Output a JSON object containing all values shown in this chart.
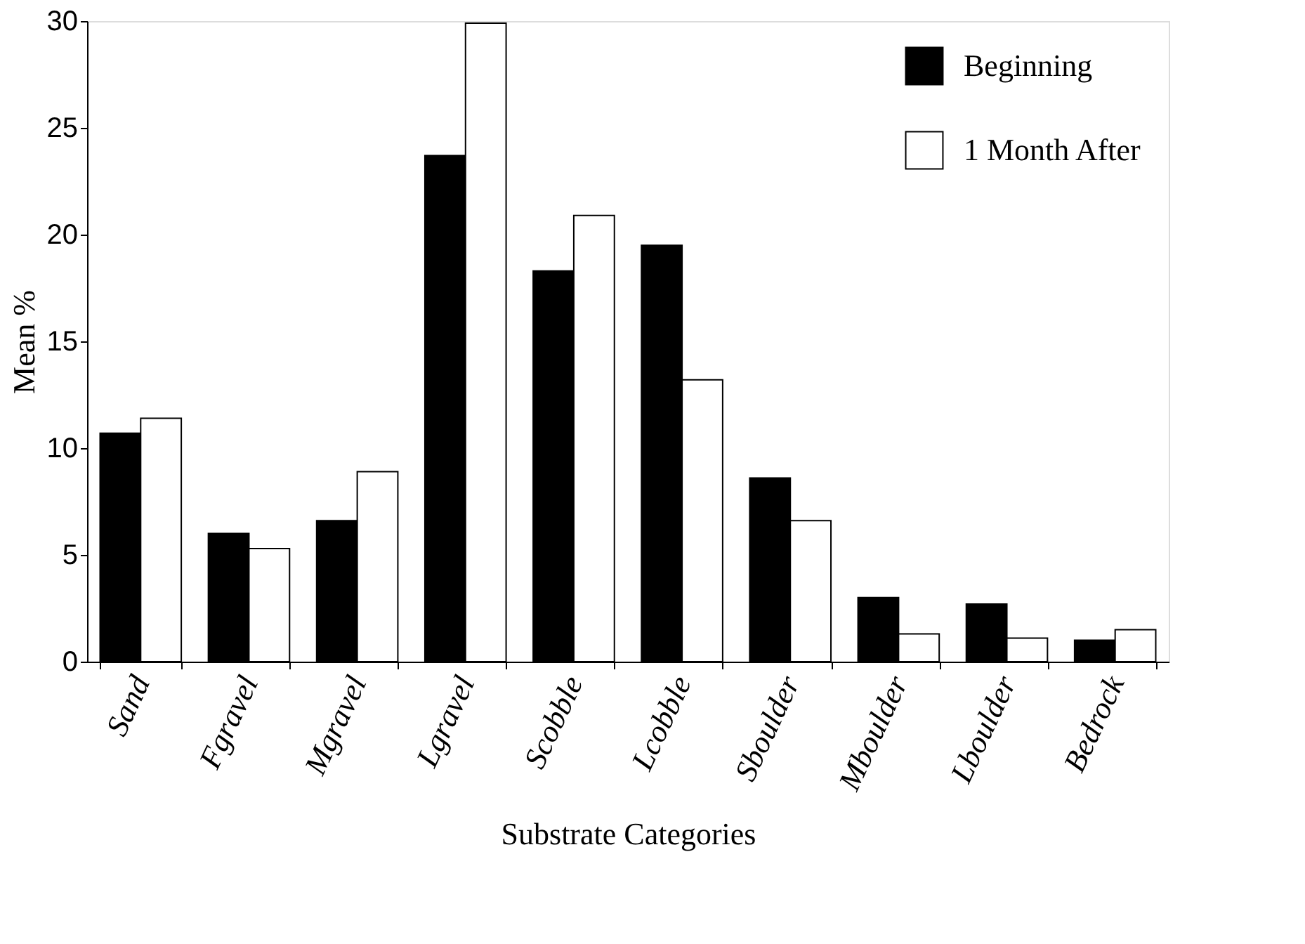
{
  "chart_data": {
    "type": "bar",
    "xlabel": "Substrate Categories",
    "ylabel": "Mean %",
    "categories": [
      "Sand",
      "Fgravel",
      "Mgravel",
      "Lgravel",
      "Scobble",
      "Lcobble",
      "Sboulder",
      "Mboulder",
      "Lboulder",
      "Bedrock"
    ],
    "series": [
      {
        "name": "Beginning",
        "color": "#000000",
        "values": [
          10.7,
          6.0,
          6.6,
          23.7,
          18.3,
          19.5,
          8.6,
          3.0,
          2.7,
          1.0
        ]
      },
      {
        "name": "1 Month After",
        "color": "#ffffff",
        "values": [
          11.4,
          5.3,
          8.9,
          29.9,
          20.9,
          13.2,
          6.6,
          1.3,
          1.1,
          1.5
        ]
      }
    ],
    "ylim": [
      0,
      30
    ],
    "yticks": [
      0,
      5,
      10,
      15,
      20,
      25,
      30
    ],
    "grid": false,
    "legend": "top right"
  }
}
